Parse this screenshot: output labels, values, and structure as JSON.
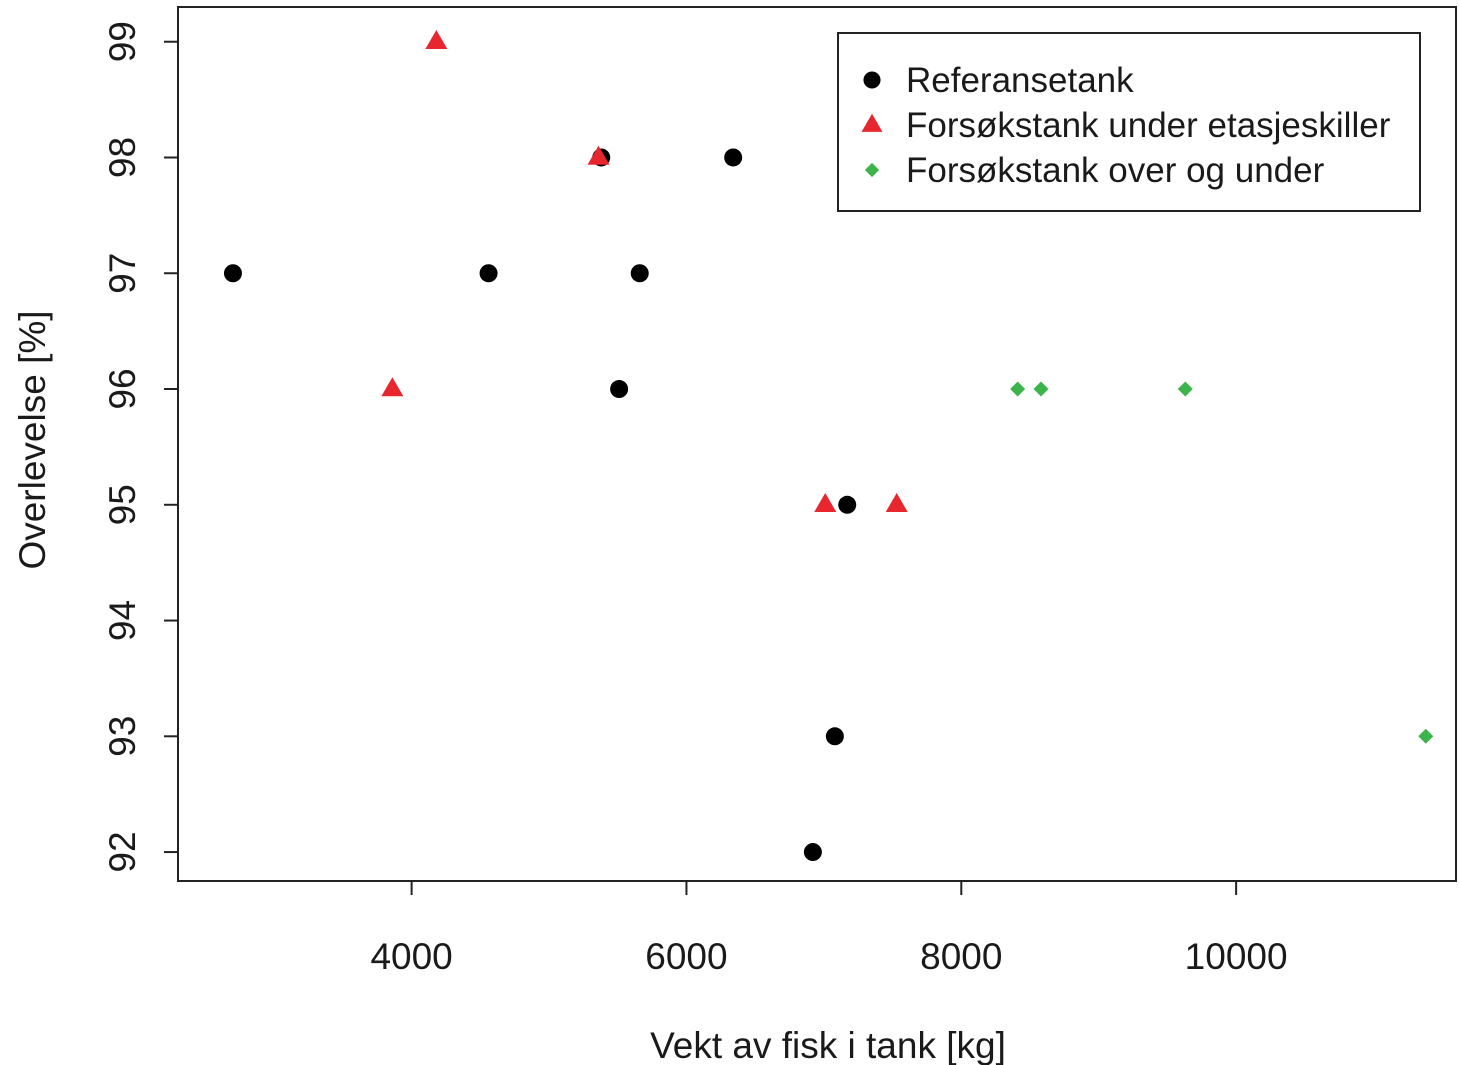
{
  "chart_data": {
    "type": "scatter",
    "xlabel": "Vekt av fisk i tank [kg]",
    "ylabel": "Overlevelse [%]",
    "xlim": [
      2300,
      11600
    ],
    "ylim": [
      91.75,
      99.3
    ],
    "x_ticks": [
      4000,
      6000,
      8000,
      10000
    ],
    "x_tick_labels": [
      "4000",
      "6000",
      "8000",
      "10000"
    ],
    "y_ticks": [
      92,
      93,
      94,
      95,
      96,
      97,
      98,
      99
    ],
    "y_tick_labels": [
      "92",
      "93",
      "94",
      "95",
      "96",
      "97",
      "98",
      "99"
    ],
    "grid": false,
    "legend_position": "top-right",
    "series": [
      {
        "name": "Referansetank",
        "marker": "circle",
        "color": "#000000",
        "points": [
          {
            "x": 2700,
            "y": 97
          },
          {
            "x": 4560,
            "y": 97
          },
          {
            "x": 5380,
            "y": 98
          },
          {
            "x": 5510,
            "y": 96
          },
          {
            "x": 5660,
            "y": 97
          },
          {
            "x": 6340,
            "y": 98
          },
          {
            "x": 6920,
            "y": 92
          },
          {
            "x": 7080,
            "y": 93
          },
          {
            "x": 7170,
            "y": 95
          }
        ]
      },
      {
        "name": "Forsøkstank under etasjeskiller",
        "marker": "triangle",
        "color": "#e8262d",
        "points": [
          {
            "x": 3860,
            "y": 96
          },
          {
            "x": 4180,
            "y": 99
          },
          {
            "x": 5360,
            "y": 98
          },
          {
            "x": 7010,
            "y": 95
          },
          {
            "x": 7530,
            "y": 95
          }
        ]
      },
      {
        "name": "Forsøkstank over og under",
        "marker": "diamond",
        "color": "#3cb44b",
        "points": [
          {
            "x": 8410,
            "y": 96
          },
          {
            "x": 8580,
            "y": 96
          },
          {
            "x": 9630,
            "y": 96
          },
          {
            "x": 11380,
            "y": 93
          }
        ]
      }
    ]
  }
}
